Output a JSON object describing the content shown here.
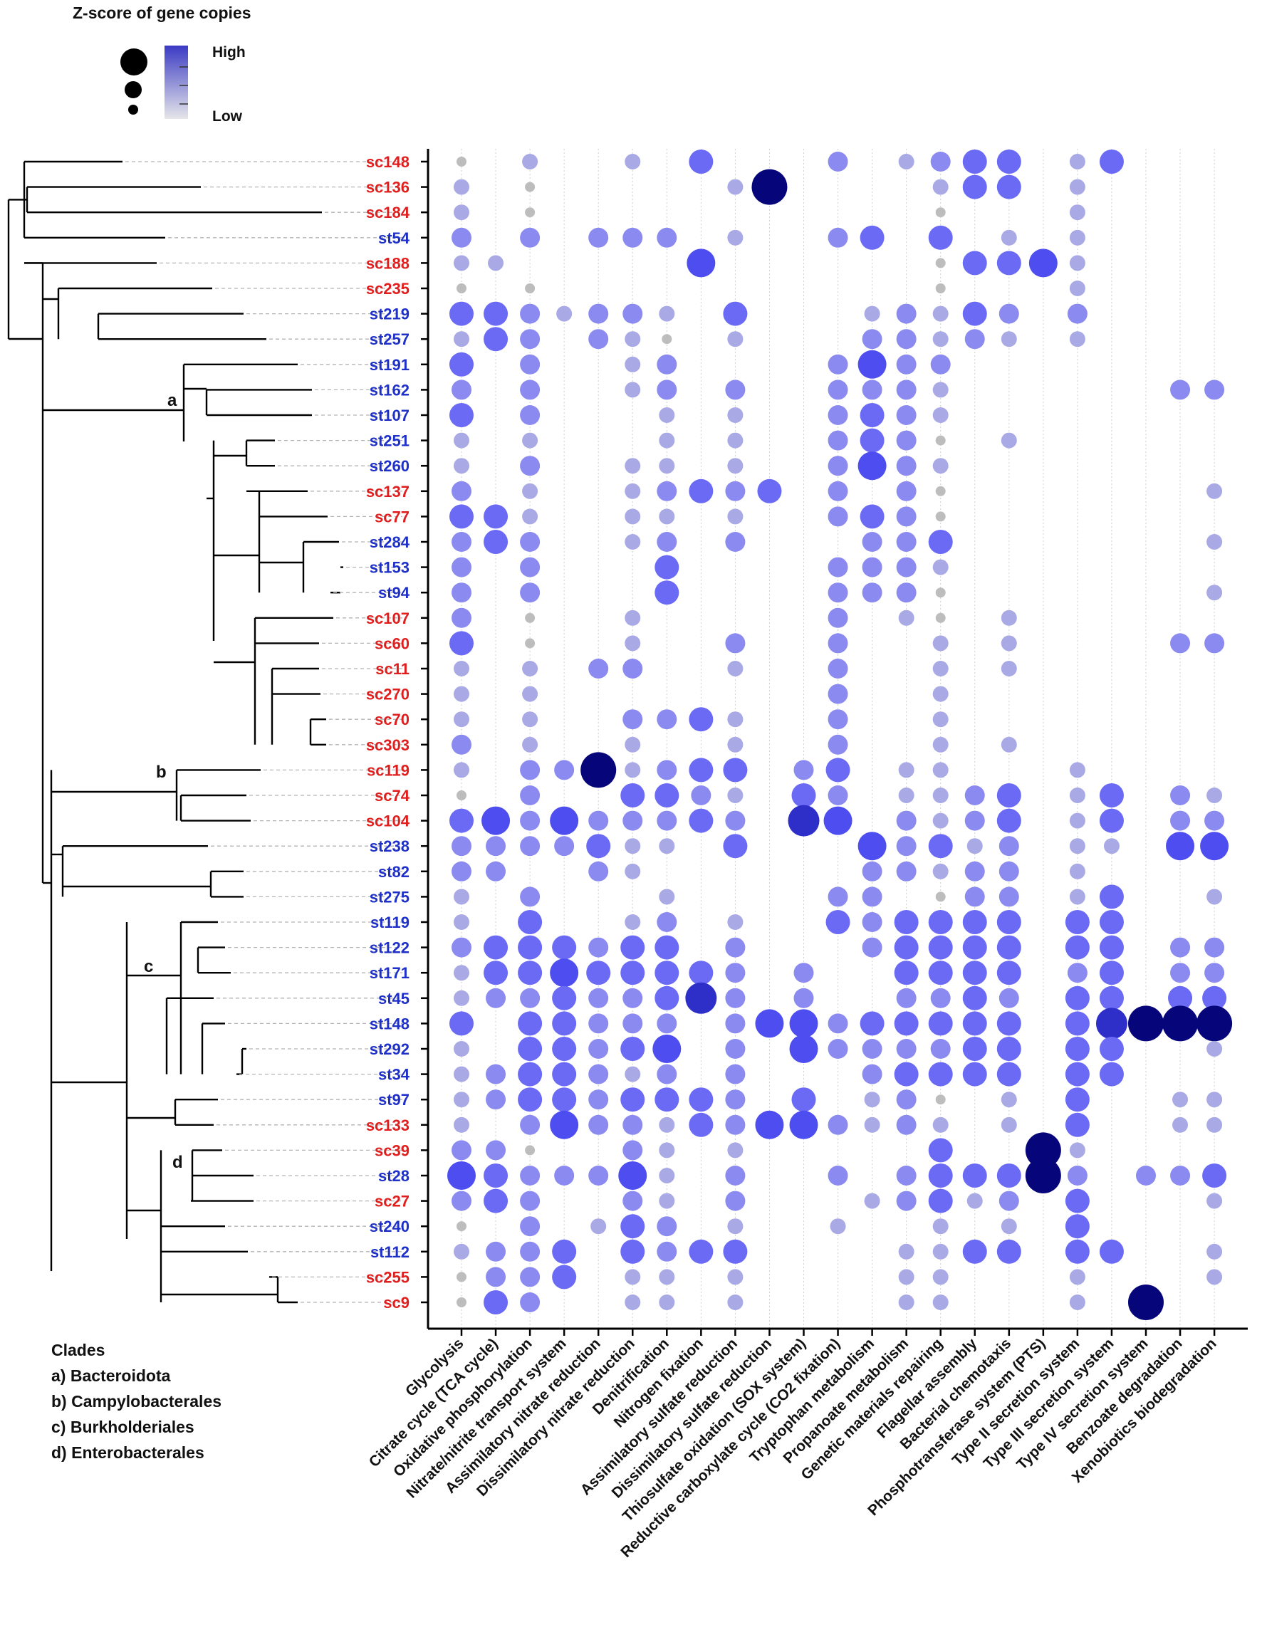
{
  "legend": {
    "title": "Z-score of gene copies",
    "high_label": "High",
    "low_label": "Low",
    "gradient_colors": [
      "#3b3bc4",
      "#e6e6ea"
    ]
  },
  "clade_legend": {
    "title": "Clades",
    "items": [
      "a) Bacteroidota",
      "b) Campylobacterales",
      "c) Burkholderiales",
      "d) Enterobacterales"
    ]
  },
  "clade_markers": [
    "a",
    "b",
    "c",
    "d"
  ],
  "colors": {
    "sc_label": "#e01e1e",
    "st_label": "#1e30c8",
    "scale": [
      "#bdbdbd",
      "#a9a9e6",
      "#8a8af0",
      "#6a6af5",
      "#4d4df0",
      "#2e2ec8",
      "#06067a"
    ]
  },
  "chart_data": {
    "type": "bubble-matrix",
    "title": "Z-score of gene copies",
    "value_scale": "0 = absent, 1 = Low ... 7 = High",
    "rows": [
      "sc148",
      "sc136",
      "sc184",
      "st54",
      "sc188",
      "sc235",
      "st219",
      "st257",
      "st191",
      "st162",
      "st107",
      "st251",
      "st260",
      "sc137",
      "sc77",
      "st284",
      "st153",
      "st94",
      "sc107",
      "sc60",
      "sc11",
      "sc270",
      "sc70",
      "sc303",
      "sc119",
      "sc74",
      "sc104",
      "st238",
      "st82",
      "st275",
      "st119",
      "st122",
      "st171",
      "st45",
      "st148",
      "st292",
      "st34",
      "st97",
      "sc133",
      "sc39",
      "st28",
      "sc27",
      "st240",
      "st112",
      "sc255",
      "sc9"
    ],
    "columns": [
      "Glycolysis",
      "Citrate cycle (TCA cycle)",
      "Oxidative phosphorylation",
      "Nitrate/nitrite transport system",
      "Assimilatory nitrate reduction",
      "Dissimilatory nitrate reduction",
      "Denitrification",
      "Nitrogen fixation",
      "Assimilatory sulfate reduction",
      "Dissimilatory sulfate reduction",
      "Thiosulfate oxidation (SOX system)",
      "Reductive carboxylate cycle (CO2 fixation)",
      "Tryptophan metabolism",
      "Propanoate metabolism",
      "Genetic materials repairing",
      "Flagellar assembly",
      "Bacterial chemotaxis",
      "Phosphotransferase system (PTS)",
      "Type II secretion system",
      "Type III secretion system",
      "Type IV secretion system",
      "Benzoate degradation",
      "Xenobiotics biodegradation"
    ],
    "values": [
      [
        1,
        0,
        2,
        0,
        0,
        2,
        0,
        4,
        0,
        0,
        0,
        3,
        0,
        2,
        3,
        4,
        4,
        0,
        2,
        4,
        0,
        0,
        0
      ],
      [
        2,
        0,
        1,
        0,
        0,
        0,
        0,
        0,
        2,
        7,
        0,
        0,
        0,
        0,
        2,
        4,
        4,
        0,
        2,
        0,
        0,
        0,
        0
      ],
      [
        2,
        0,
        1,
        0,
        0,
        0,
        0,
        0,
        0,
        0,
        0,
        0,
        0,
        0,
        1,
        0,
        0,
        0,
        2,
        0,
        0,
        0,
        0
      ],
      [
        3,
        0,
        3,
        0,
        3,
        3,
        3,
        0,
        2,
        0,
        0,
        3,
        4,
        0,
        4,
        0,
        2,
        0,
        2,
        0,
        0,
        0,
        0
      ],
      [
        2,
        2,
        0,
        0,
        0,
        0,
        0,
        5,
        0,
        0,
        0,
        0,
        0,
        0,
        1,
        4,
        4,
        5,
        2,
        0,
        0,
        0,
        0
      ],
      [
        1,
        0,
        1,
        0,
        0,
        0,
        0,
        0,
        0,
        0,
        0,
        0,
        0,
        0,
        1,
        0,
        0,
        0,
        2,
        0,
        0,
        0,
        0
      ],
      [
        4,
        4,
        3,
        2,
        3,
        3,
        2,
        0,
        4,
        0,
        0,
        0,
        2,
        3,
        2,
        4,
        3,
        0,
        3,
        0,
        0,
        0,
        0
      ],
      [
        2,
        4,
        3,
        0,
        3,
        2,
        1,
        0,
        2,
        0,
        0,
        0,
        3,
        3,
        2,
        3,
        2,
        0,
        2,
        0,
        0,
        0,
        0
      ],
      [
        4,
        0,
        3,
        0,
        0,
        2,
        3,
        0,
        0,
        0,
        0,
        3,
        5,
        3,
        3,
        0,
        0,
        0,
        0,
        0,
        0,
        0,
        0
      ],
      [
        3,
        0,
        3,
        0,
        0,
        2,
        3,
        0,
        3,
        0,
        0,
        3,
        3,
        3,
        2,
        0,
        0,
        0,
        0,
        0,
        0,
        3,
        3
      ],
      [
        4,
        0,
        3,
        0,
        0,
        0,
        2,
        0,
        2,
        0,
        0,
        3,
        4,
        3,
        2,
        0,
        0,
        0,
        0,
        0,
        0,
        0,
        0
      ],
      [
        2,
        0,
        2,
        0,
        0,
        0,
        2,
        0,
        2,
        0,
        0,
        3,
        4,
        3,
        1,
        0,
        2,
        0,
        0,
        0,
        0,
        0,
        0
      ],
      [
        2,
        0,
        3,
        0,
        0,
        2,
        2,
        0,
        2,
        0,
        0,
        3,
        5,
        3,
        2,
        0,
        0,
        0,
        0,
        0,
        0,
        0,
        0
      ],
      [
        3,
        0,
        2,
        0,
        0,
        2,
        3,
        4,
        3,
        4,
        0,
        3,
        0,
        3,
        1,
        0,
        0,
        0,
        0,
        0,
        0,
        0,
        2
      ],
      [
        4,
        4,
        2,
        0,
        0,
        2,
        2,
        0,
        2,
        0,
        0,
        3,
        4,
        3,
        1,
        0,
        0,
        0,
        0,
        0,
        0,
        0,
        0
      ],
      [
        3,
        4,
        3,
        0,
        0,
        2,
        3,
        0,
        3,
        0,
        0,
        0,
        3,
        3,
        4,
        0,
        0,
        0,
        0,
        0,
        0,
        0,
        2
      ],
      [
        3,
        0,
        3,
        0,
        0,
        0,
        4,
        0,
        0,
        0,
        0,
        3,
        3,
        3,
        2,
        0,
        0,
        0,
        0,
        0,
        0,
        0,
        0
      ],
      [
        3,
        0,
        3,
        0,
        0,
        0,
        4,
        0,
        0,
        0,
        0,
        3,
        3,
        3,
        1,
        0,
        0,
        0,
        0,
        0,
        0,
        0,
        2
      ],
      [
        3,
        0,
        1,
        0,
        0,
        2,
        0,
        0,
        0,
        0,
        0,
        3,
        0,
        2,
        1,
        0,
        2,
        0,
        0,
        0,
        0,
        0,
        0
      ],
      [
        4,
        0,
        1,
        0,
        0,
        2,
        0,
        0,
        3,
        0,
        0,
        3,
        0,
        0,
        2,
        0,
        2,
        0,
        0,
        0,
        0,
        3,
        3
      ],
      [
        2,
        0,
        2,
        0,
        3,
        3,
        0,
        0,
        2,
        0,
        0,
        3,
        0,
        0,
        2,
        0,
        2,
        0,
        0,
        0,
        0,
        0,
        0
      ],
      [
        2,
        0,
        2,
        0,
        0,
        0,
        0,
        0,
        0,
        0,
        0,
        3,
        0,
        0,
        2,
        0,
        0,
        0,
        0,
        0,
        0,
        0,
        0
      ],
      [
        2,
        0,
        2,
        0,
        0,
        3,
        3,
        4,
        2,
        0,
        0,
        3,
        0,
        0,
        2,
        0,
        0,
        0,
        0,
        0,
        0,
        0,
        0
      ],
      [
        3,
        0,
        2,
        0,
        0,
        2,
        0,
        0,
        2,
        0,
        0,
        3,
        0,
        0,
        2,
        0,
        2,
        0,
        0,
        0,
        0,
        0,
        0
      ],
      [
        2,
        0,
        3,
        3,
        7,
        2,
        3,
        4,
        4,
        0,
        3,
        4,
        0,
        2,
        2,
        0,
        0,
        0,
        2,
        0,
        0,
        0,
        0
      ],
      [
        1,
        0,
        3,
        0,
        0,
        4,
        4,
        3,
        2,
        0,
        4,
        3,
        0,
        2,
        2,
        3,
        4,
        0,
        2,
        4,
        0,
        3,
        2
      ],
      [
        4,
        5,
        3,
        5,
        3,
        3,
        3,
        4,
        3,
        0,
        6,
        5,
        0,
        3,
        2,
        3,
        4,
        0,
        2,
        4,
        0,
        3,
        3
      ],
      [
        3,
        3,
        3,
        3,
        4,
        2,
        2,
        0,
        4,
        0,
        0,
        0,
        5,
        3,
        4,
        2,
        3,
        0,
        2,
        2,
        0,
        5,
        5
      ],
      [
        3,
        3,
        0,
        0,
        3,
        2,
        0,
        0,
        0,
        0,
        0,
        0,
        3,
        3,
        2,
        3,
        3,
        0,
        2,
        0,
        0,
        0,
        0
      ],
      [
        2,
        0,
        3,
        0,
        0,
        0,
        2,
        0,
        0,
        0,
        0,
        3,
        3,
        0,
        1,
        3,
        3,
        0,
        2,
        4,
        0,
        0,
        2
      ],
      [
        2,
        0,
        4,
        0,
        0,
        2,
        3,
        0,
        2,
        0,
        0,
        4,
        3,
        4,
        4,
        4,
        4,
        0,
        4,
        4,
        0,
        0,
        0
      ],
      [
        3,
        4,
        4,
        4,
        3,
        4,
        4,
        0,
        3,
        0,
        0,
        0,
        3,
        4,
        4,
        4,
        4,
        0,
        4,
        4,
        0,
        3,
        3
      ],
      [
        2,
        4,
        4,
        5,
        4,
        4,
        4,
        4,
        3,
        0,
        3,
        0,
        0,
        4,
        4,
        4,
        4,
        0,
        3,
        4,
        0,
        3,
        3
      ],
      [
        2,
        3,
        3,
        4,
        3,
        3,
        4,
        6,
        3,
        0,
        3,
        0,
        0,
        3,
        3,
        4,
        3,
        0,
        4,
        4,
        0,
        4,
        4
      ],
      [
        4,
        0,
        4,
        4,
        3,
        3,
        3,
        0,
        3,
        5,
        5,
        3,
        4,
        4,
        4,
        4,
        4,
        0,
        4,
        6,
        7,
        7,
        7
      ],
      [
        2,
        0,
        4,
        4,
        3,
        4,
        5,
        0,
        3,
        0,
        5,
        3,
        3,
        3,
        3,
        4,
        4,
        0,
        4,
        4,
        0,
        0,
        2
      ],
      [
        2,
        3,
        4,
        4,
        3,
        2,
        3,
        0,
        3,
        0,
        0,
        0,
        3,
        4,
        4,
        4,
        4,
        0,
        4,
        4,
        0,
        0,
        0
      ],
      [
        2,
        3,
        4,
        4,
        3,
        4,
        4,
        4,
        3,
        0,
        4,
        0,
        2,
        3,
        1,
        0,
        2,
        0,
        4,
        0,
        0,
        2,
        2
      ],
      [
        2,
        0,
        3,
        5,
        3,
        3,
        2,
        4,
        3,
        5,
        5,
        3,
        2,
        3,
        2,
        0,
        2,
        0,
        4,
        0,
        0,
        2,
        2
      ],
      [
        3,
        3,
        1,
        0,
        0,
        3,
        2,
        0,
        2,
        0,
        0,
        0,
        0,
        0,
        4,
        0,
        0,
        7,
        2,
        0,
        0,
        0,
        0
      ],
      [
        5,
        4,
        3,
        3,
        3,
        5,
        2,
        0,
        3,
        0,
        0,
        3,
        0,
        3,
        4,
        4,
        4,
        7,
        3,
        0,
        3,
        3,
        4
      ],
      [
        3,
        4,
        3,
        0,
        0,
        3,
        2,
        0,
        3,
        0,
        0,
        0,
        2,
        3,
        4,
        2,
        3,
        0,
        4,
        0,
        0,
        0,
        2
      ],
      [
        1,
        0,
        3,
        0,
        2,
        4,
        3,
        0,
        2,
        0,
        0,
        2,
        0,
        0,
        2,
        0,
        2,
        0,
        4,
        0,
        0,
        0,
        0
      ],
      [
        2,
        3,
        3,
        4,
        0,
        4,
        3,
        4,
        4,
        0,
        0,
        0,
        0,
        2,
        2,
        4,
        4,
        0,
        4,
        4,
        0,
        0,
        2
      ],
      [
        1,
        3,
        3,
        4,
        0,
        2,
        2,
        0,
        2,
        0,
        0,
        0,
        0,
        2,
        2,
        0,
        0,
        0,
        2,
        0,
        0,
        0,
        2
      ],
      [
        1,
        4,
        3,
        0,
        0,
        2,
        2,
        0,
        2,
        0,
        0,
        0,
        0,
        2,
        2,
        0,
        0,
        0,
        2,
        0,
        7,
        0,
        0
      ]
    ],
    "legend": [
      "High",
      "Low"
    ]
  }
}
